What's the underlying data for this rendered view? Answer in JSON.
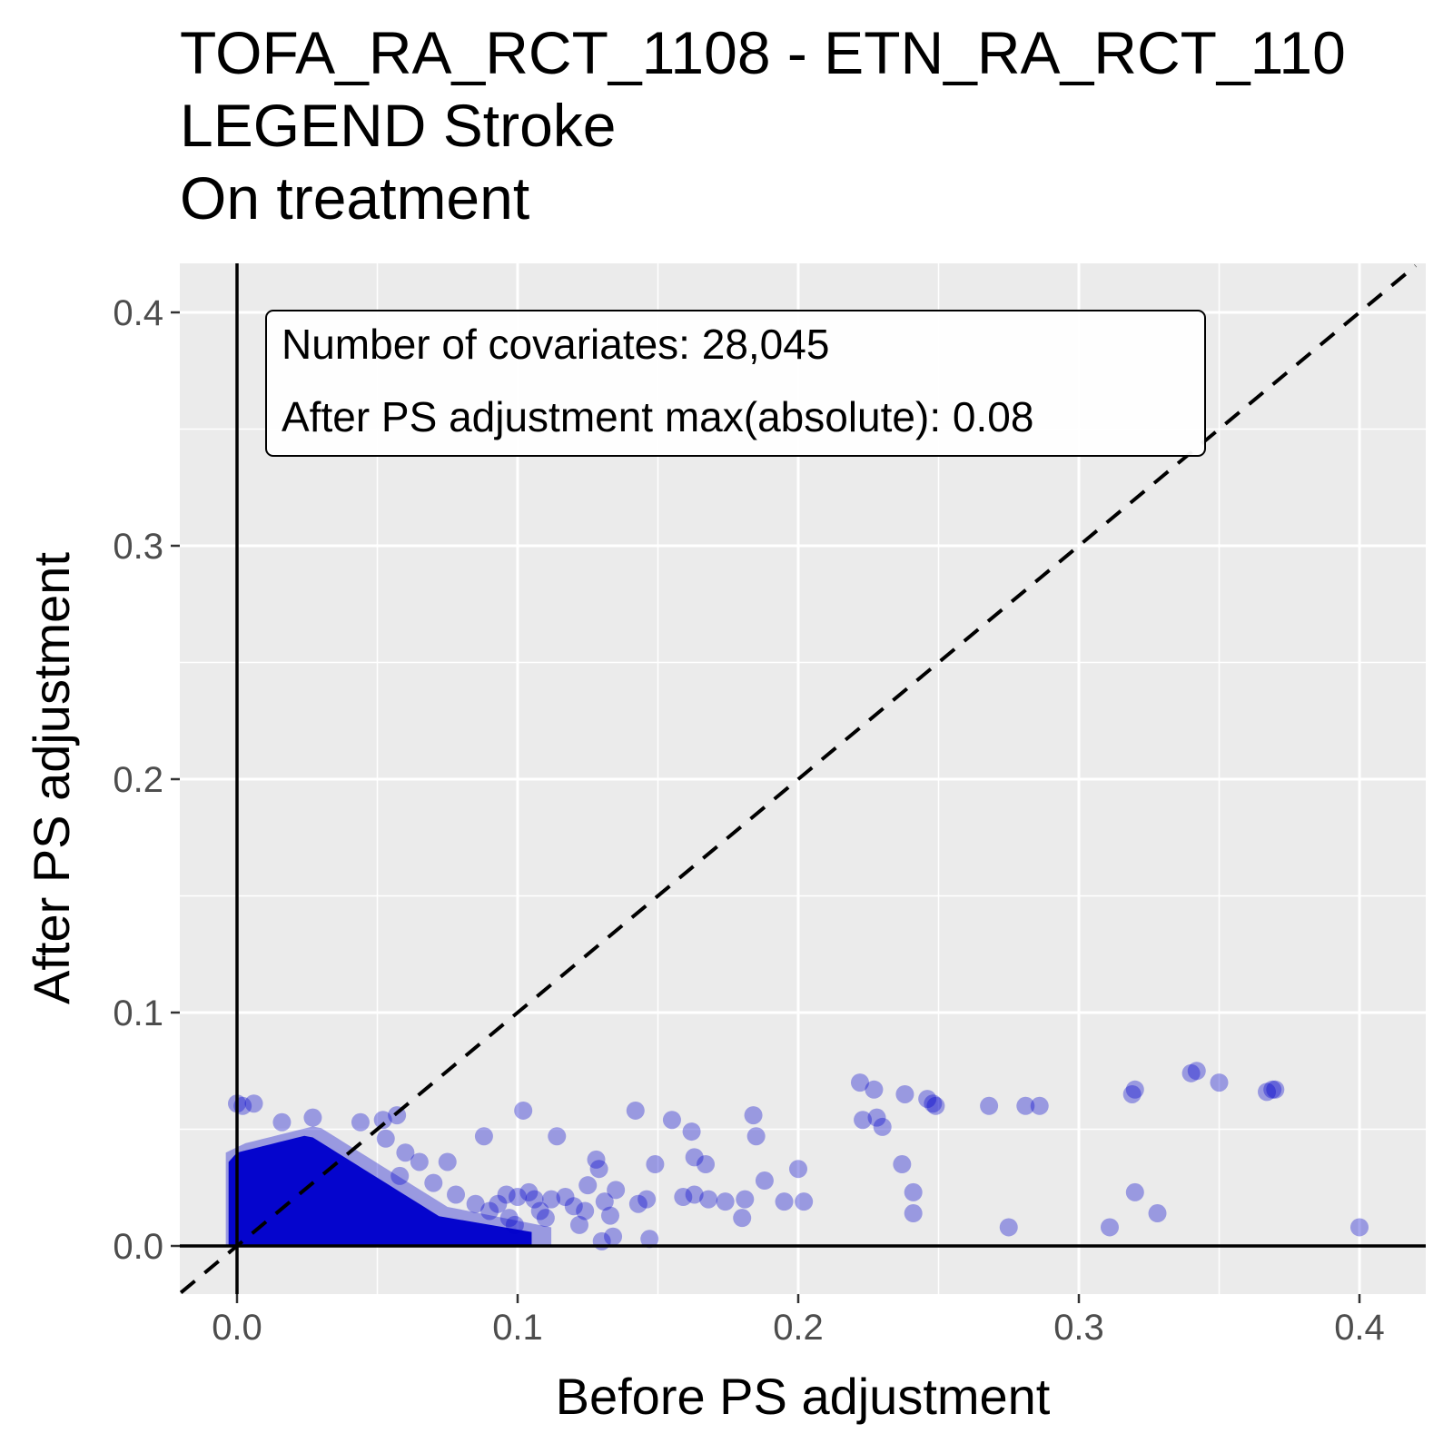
{
  "chart_data": {
    "type": "scatter",
    "title_lines": [
      "TOFA_RA_RCT_1108 - ETN_RA_RCT_110",
      "LEGEND Stroke",
      "On treatment"
    ],
    "xlabel": "Before PS adjustment",
    "ylabel": "After PS adjustment",
    "xlim": [
      -0.02,
      0.42
    ],
    "ylim": [
      -0.02,
      0.42
    ],
    "x_ticks": [
      0.0,
      0.1,
      0.2,
      0.3,
      0.4
    ],
    "y_ticks": [
      0.0,
      0.1,
      0.2,
      0.3,
      0.4
    ],
    "x_tick_labels": [
      "0.0",
      "0.1",
      "0.2",
      "0.3",
      "0.4"
    ],
    "y_tick_labels": [
      "0.0",
      "0.1",
      "0.2",
      "0.3",
      "0.4"
    ],
    "grid": true,
    "reference_lines": [
      "x = 0",
      "y = 0",
      "y = x (dashed)"
    ],
    "annotation": {
      "line1": "Number of covariates: 28,045",
      "line2": "After PS adjustment max(absolute): 0.08"
    },
    "colors": {
      "panel": "#ebebeb",
      "grid": "#ffffff",
      "point": "#0000cc"
    },
    "series": [
      {
        "points": [
          [
            0.0,
            0.061
          ],
          [
            0.002,
            0.06
          ],
          [
            0.006,
            0.061
          ],
          [
            0.016,
            0.053
          ],
          [
            0.027,
            0.055
          ],
          [
            0.044,
            0.053
          ],
          [
            0.052,
            0.054
          ],
          [
            0.057,
            0.056
          ],
          [
            0.053,
            0.046
          ],
          [
            0.06,
            0.04
          ],
          [
            0.065,
            0.036
          ],
          [
            0.058,
            0.03
          ],
          [
            0.075,
            0.036
          ],
          [
            0.07,
            0.027
          ],
          [
            0.078,
            0.022
          ],
          [
            0.085,
            0.018
          ],
          [
            0.088,
            0.047
          ],
          [
            0.09,
            0.015
          ],
          [
            0.093,
            0.018
          ],
          [
            0.096,
            0.022
          ],
          [
            0.097,
            0.012
          ],
          [
            0.099,
            0.009
          ],
          [
            0.1,
            0.021
          ],
          [
            0.102,
            0.058
          ],
          [
            0.104,
            0.023
          ],
          [
            0.106,
            0.02
          ],
          [
            0.108,
            0.015
          ],
          [
            0.11,
            0.012
          ],
          [
            0.112,
            0.02
          ],
          [
            0.114,
            0.047
          ],
          [
            0.117,
            0.021
          ],
          [
            0.12,
            0.017
          ],
          [
            0.122,
            0.009
          ],
          [
            0.124,
            0.015
          ],
          [
            0.125,
            0.026
          ],
          [
            0.128,
            0.037
          ],
          [
            0.129,
            0.033
          ],
          [
            0.13,
            0.002
          ],
          [
            0.131,
            0.019
          ],
          [
            0.133,
            0.013
          ],
          [
            0.134,
            0.004
          ],
          [
            0.135,
            0.024
          ],
          [
            0.142,
            0.058
          ],
          [
            0.143,
            0.018
          ],
          [
            0.146,
            0.02
          ],
          [
            0.147,
            0.003
          ],
          [
            0.149,
            0.035
          ],
          [
            0.155,
            0.054
          ],
          [
            0.159,
            0.021
          ],
          [
            0.162,
            0.049
          ],
          [
            0.163,
            0.022
          ],
          [
            0.163,
            0.038
          ],
          [
            0.167,
            0.035
          ],
          [
            0.168,
            0.02
          ],
          [
            0.174,
            0.019
          ],
          [
            0.18,
            0.012
          ],
          [
            0.181,
            0.02
          ],
          [
            0.184,
            0.056
          ],
          [
            0.185,
            0.047
          ],
          [
            0.188,
            0.028
          ],
          [
            0.195,
            0.019
          ],
          [
            0.2,
            0.033
          ],
          [
            0.202,
            0.019
          ],
          [
            0.222,
            0.07
          ],
          [
            0.223,
            0.054
          ],
          [
            0.227,
            0.067
          ],
          [
            0.228,
            0.055
          ],
          [
            0.23,
            0.051
          ],
          [
            0.237,
            0.035
          ],
          [
            0.238,
            0.065
          ],
          [
            0.241,
            0.023
          ],
          [
            0.241,
            0.014
          ],
          [
            0.246,
            0.063
          ],
          [
            0.248,
            0.061
          ],
          [
            0.249,
            0.06
          ],
          [
            0.268,
            0.06
          ],
          [
            0.275,
            0.008
          ],
          [
            0.281,
            0.06
          ],
          [
            0.286,
            0.06
          ],
          [
            0.311,
            0.008
          ],
          [
            0.319,
            0.065
          ],
          [
            0.32,
            0.067
          ],
          [
            0.32,
            0.023
          ],
          [
            0.328,
            0.014
          ],
          [
            0.34,
            0.074
          ],
          [
            0.342,
            0.075
          ],
          [
            0.35,
            0.07
          ],
          [
            0.367,
            0.066
          ],
          [
            0.369,
            0.067
          ],
          [
            0.37,
            0.067
          ],
          [
            0.4,
            0.008
          ]
        ]
      }
    ]
  }
}
